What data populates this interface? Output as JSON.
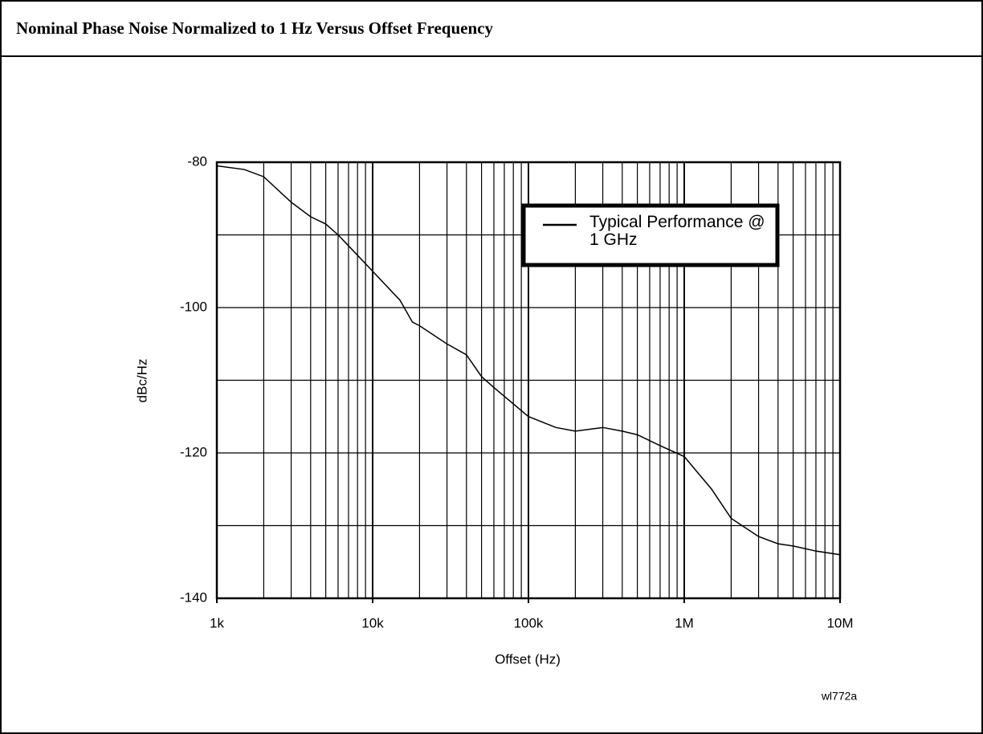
{
  "chart_data": {
    "type": "line",
    "title": "Nominal Phase Noise Normalized to 1 Hz Versus Offset Frequency",
    "xlabel": "Offset (Hz)",
    "ylabel": "dBc/Hz",
    "note": "wl772a",
    "xscale": "log",
    "log_minor_grid": true,
    "grid": true,
    "legend": "upper right",
    "xlim": [
      1000,
      10000000
    ],
    "ylim": [
      -140,
      -80
    ],
    "xticks": [
      {
        "value": 1000,
        "label": "1k"
      },
      {
        "value": 10000,
        "label": "10k"
      },
      {
        "value": 100000,
        "label": "100k"
      },
      {
        "value": 1000000,
        "label": "1M"
      },
      {
        "value": 10000000,
        "label": "10M"
      }
    ],
    "yticks": [
      -80,
      {
        "value": -90,
        "label": null
      },
      -100,
      {
        "value": -110,
        "label": null
      },
      -120,
      {
        "value": -130,
        "label": null
      },
      -140
    ],
    "x": [
      1000,
      1500,
      2000,
      3000,
      4000,
      5000,
      6000,
      7000,
      10000,
      15000,
      18000,
      20000,
      30000,
      40000,
      50000,
      60000,
      100000,
      150000,
      200000,
      300000,
      400000,
      500000,
      700000,
      1000000,
      1500000,
      2000000,
      3000000,
      4000000,
      5000000,
      7000000,
      10000000
    ],
    "series": [
      {
        "name": "Typical Performance @ 1 GHz",
        "color": "#000000",
        "values": [
          -80.5,
          -81,
          -82,
          -85.5,
          -87.5,
          -88.5,
          -90,
          -91.5,
          -95,
          -99,
          -102,
          -102.5,
          -105,
          -106.5,
          -109.5,
          -111,
          -115,
          -116.5,
          -117,
          -116.5,
          -117,
          -117.5,
          -119,
          -120.5,
          -125,
          -129,
          -131.5,
          -132.5,
          -132.8,
          -133.5,
          -134
        ]
      }
    ]
  }
}
